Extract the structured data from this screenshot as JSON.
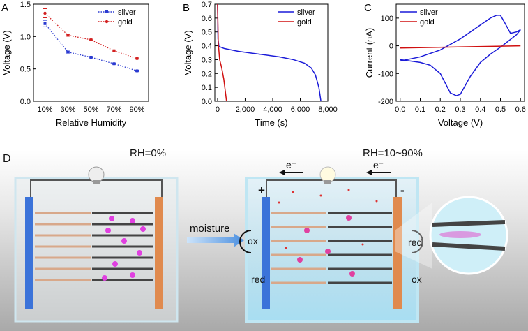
{
  "chart_data": [
    {
      "type": "line",
      "panel": "A",
      "xlabel": "Relative Humidity",
      "ylabel": "Voltage (V)",
      "categories": [
        "10%",
        "30%",
        "50%",
        "70%",
        "90%"
      ],
      "ylim": [
        0,
        1.5
      ],
      "yticks": [
        {
          "value": 0,
          "label": "0.0"
        },
        0.5,
        {
          "value": 1,
          "label": "1.0"
        },
        1.5
      ],
      "line_style": "dotted",
      "legend": "upper right",
      "series": [
        {
          "name": "silver",
          "color": "#2b3bd1",
          "marker": "square",
          "values": [
            1.2,
            0.76,
            0.68,
            0.58,
            0.47
          ],
          "errors": [
            0.05,
            0.015,
            0.01,
            0.01,
            0.01
          ]
        },
        {
          "name": "gold",
          "color": "#d32020",
          "marker": "circle",
          "values": [
            1.36,
            1.02,
            0.95,
            0.78,
            0.66
          ],
          "errors": [
            0.07,
            0.015,
            0.01,
            0.015,
            0.01
          ]
        }
      ]
    },
    {
      "type": "line",
      "panel": "B",
      "xlabel": "Time (s)",
      "ylabel": "Voltage (V)",
      "xlim": [
        -200,
        8000
      ],
      "xticks": [
        0,
        {
          "value": 2000,
          "label": "2,000"
        },
        {
          "value": 4000,
          "label": "4,000"
        },
        {
          "value": 6000,
          "label": "6,000"
        },
        {
          "value": 8000,
          "label": "8,000"
        }
      ],
      "ylim": [
        0,
        0.7
      ],
      "yticks": [
        {
          "value": 0,
          "label": "0.0"
        },
        0.1,
        0.2,
        0.3,
        0.4,
        0.5,
        0.6,
        0.7
      ],
      "legend": "upper right",
      "series": [
        {
          "name": "silver",
          "color": "#1a1ad8",
          "x": [
            0,
            30,
            100,
            500,
            1500,
            3000,
            4500,
            5500,
            6300,
            6800,
            7100,
            7350,
            7500
          ],
          "values": [
            0.7,
            0.45,
            0.395,
            0.38,
            0.36,
            0.34,
            0.32,
            0.3,
            0.275,
            0.24,
            0.19,
            0.1,
            0
          ]
        },
        {
          "name": "gold",
          "color": "#d01010",
          "x": [
            0,
            50,
            150,
            300,
            450,
            600,
            650
          ],
          "values": [
            0.7,
            0.42,
            0.3,
            0.24,
            0.16,
            0.04,
            0
          ]
        }
      ]
    },
    {
      "type": "line",
      "panel": "C",
      "xlabel": "Voltage (V)",
      "ylabel": "Current (nA)",
      "xlim": [
        -0.02,
        0.62
      ],
      "xticks": [
        {
          "value": 0,
          "label": "0.0"
        },
        0.1,
        0.2,
        0.3,
        0.4,
        0.5,
        0.6
      ],
      "ylim": [
        -200,
        150
      ],
      "yticks": [
        -200,
        -100,
        0,
        100
      ],
      "legend": "upper left",
      "series": [
        {
          "name": "silver",
          "color": "#1a1ad8",
          "x": [
            0,
            0.1,
            0.2,
            0.25,
            0.3,
            0.35,
            0.4,
            0.45,
            0.48,
            0.5,
            0.52,
            0.55,
            0.58,
            0.6,
            0.58,
            0.5,
            0.45,
            0.4,
            0.35,
            0.3,
            0.28,
            0.25,
            0.2,
            0.15,
            0.1,
            0.05,
            0
          ],
          "values": [
            -55,
            -40,
            -15,
            5,
            25,
            50,
            75,
            100,
            110,
            110,
            85,
            45,
            50,
            58,
            40,
            -5,
            -30,
            -60,
            -110,
            -175,
            -180,
            -170,
            -100,
            -70,
            -60,
            -55,
            -50
          ]
        },
        {
          "name": "gold",
          "color": "#d01010",
          "x": [
            0,
            0.6
          ],
          "values": [
            -8,
            0
          ]
        }
      ]
    }
  ],
  "diagram": {
    "label": "D",
    "left_title": "RH=0%",
    "right_title": "RH=10~90%",
    "arrow": "moisture",
    "electron_left": "e⁻",
    "electron_right": "e⁻",
    "plus": "+",
    "minus": "-",
    "left_top": "ox",
    "left_bottom": "red",
    "right_top": "red",
    "right_bottom": "ox"
  }
}
